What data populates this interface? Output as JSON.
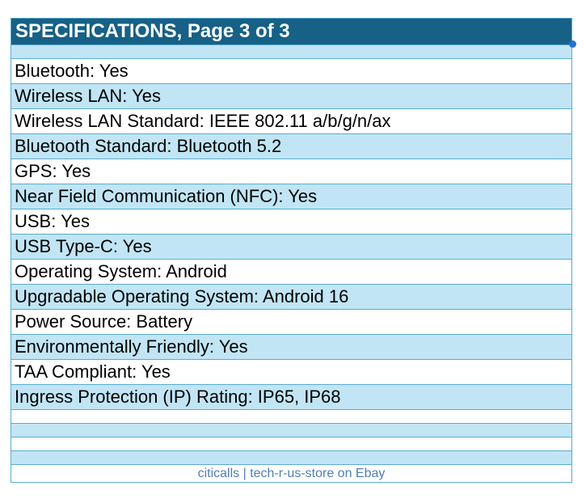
{
  "header": {
    "title": "SPECIFICATIONS, Page 3 of 3"
  },
  "specs": [
    "Bluetooth: Yes",
    "Wireless LAN: Yes",
    "Wireless LAN Standard: IEEE 802.11 a/b/g/n/ax",
    "Bluetooth Standard: Bluetooth 5.2",
    "GPS: Yes",
    "Near Field Communication (NFC): Yes",
    "USB: Yes",
    "USB Type-C: Yes",
    "Operating System: Android",
    "Upgradable Operating System: Android 16",
    "Power Source: Battery",
    "Environmentally Friendly: Yes",
    "TAA Compliant: Yes",
    "Ingress Protection (IP) Rating: IP65, IP68"
  ],
  "footer": {
    "text": "citicalls | tech-r-us-store on Ebay"
  },
  "colors": {
    "header": "#176086",
    "row_alt": "#c1e5f4",
    "border": "#5aabd0",
    "footer_text": "#4f7fb3"
  }
}
